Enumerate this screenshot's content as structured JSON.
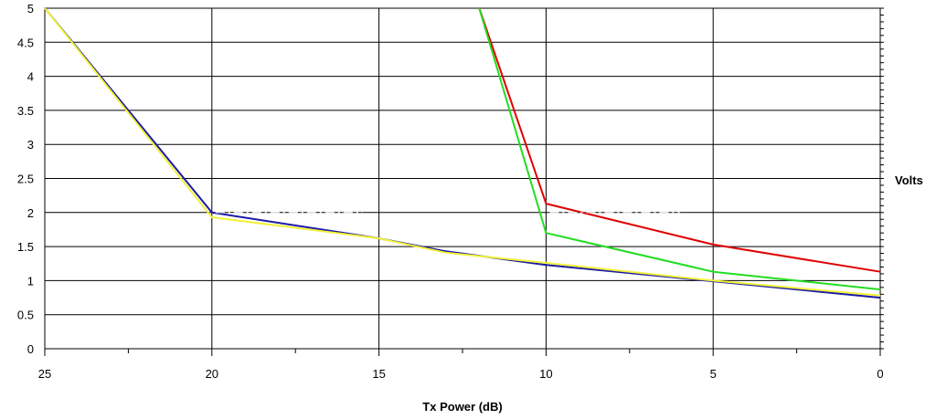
{
  "chart_data": {
    "type": "line",
    "title": "",
    "xlabel": "Tx Power (dB)",
    "ylabel": "Volts",
    "xlim": [
      25,
      0
    ],
    "ylim": [
      0,
      5
    ],
    "x_reversed": true,
    "xticks": [
      25,
      20,
      15,
      10,
      5,
      0
    ],
    "yticks": [
      0,
      0.5,
      1,
      1.5,
      2,
      2.5,
      3,
      3.5,
      4,
      4.5,
      5
    ],
    "grid": true,
    "legend": "none",
    "series": [
      {
        "color": "#1a1aa6",
        "points": [
          [
            25,
            5.0
          ],
          [
            20,
            2.0
          ],
          [
            15,
            1.62
          ],
          [
            13,
            1.43
          ],
          [
            10,
            1.23
          ],
          [
            5,
            0.99
          ],
          [
            0,
            0.75
          ]
        ]
      },
      {
        "color": "#f2f23a",
        "points": [
          [
            25,
            5.0
          ],
          [
            20,
            1.93
          ],
          [
            15,
            1.62
          ],
          [
            13,
            1.41
          ],
          [
            10,
            1.26
          ],
          [
            5,
            1.0
          ],
          [
            0,
            0.78
          ]
        ]
      },
      {
        "color": "#e00000",
        "points": [
          [
            12,
            5.0
          ],
          [
            10,
            2.13
          ],
          [
            5,
            1.53
          ],
          [
            0,
            1.13
          ]
        ]
      },
      {
        "color": "#22dd22",
        "points": [
          [
            12,
            5.0
          ],
          [
            10,
            1.7
          ],
          [
            5,
            1.13
          ],
          [
            0,
            0.87
          ]
        ]
      }
    ]
  }
}
